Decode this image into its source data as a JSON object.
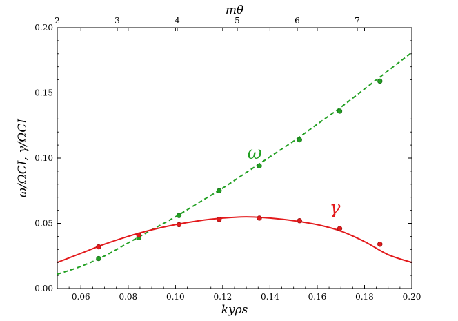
{
  "chart_data": {
    "type": "line",
    "xlabel": "kyρs",
    "ylabel": "ω/ΩCI, γ/ΩCI",
    "top_xlabel": "mθ",
    "xlim": [
      0.05,
      0.2
    ],
    "ylim": [
      0.0,
      0.2
    ],
    "x_ticks": [
      0.06,
      0.08,
      0.1,
      0.12,
      0.14,
      0.16,
      0.18,
      0.2
    ],
    "x_tick_labels": [
      "0.06",
      "0.08",
      "0.10",
      "0.12",
      "0.14",
      "0.16",
      "0.18",
      "0.20"
    ],
    "y_ticks": [
      0.0,
      0.05,
      0.1,
      0.15,
      0.2
    ],
    "y_tick_labels": [
      "0.00",
      "0.05",
      "0.10",
      "0.15",
      "0.20"
    ],
    "top_ticks": [
      {
        "x": 0.05,
        "label": "2"
      },
      {
        "x": 0.0667,
        "label": "3"
      },
      {
        "x": 0.1014,
        "label": "4"
      },
      {
        "x": 0.1183,
        "label": "5"
      },
      {
        "x": 0.1352,
        "label": "6"
      },
      {
        "x": 0.1521,
        "label": "7"
      }
    ],
    "grid": false,
    "series": [
      {
        "name": "ω",
        "color": "#22a022",
        "style": "dashed",
        "curve_x": [
          0.05,
          0.06,
          0.07,
          0.08,
          0.09,
          0.1,
          0.11,
          0.12,
          0.13,
          0.14,
          0.15,
          0.16,
          0.17,
          0.18,
          0.19,
          0.2
        ],
        "curve_y": [
          0.011,
          0.017,
          0.025,
          0.035,
          0.045,
          0.055,
          0.066,
          0.077,
          0.089,
          0.101,
          0.113,
          0.126,
          0.139,
          0.153,
          0.167,
          0.181
        ],
        "points_x": [
          0.0675,
          0.0845,
          0.1015,
          0.1185,
          0.1355,
          0.1525,
          0.1695,
          0.1865
        ],
        "points_y": [
          0.023,
          0.039,
          0.056,
          0.075,
          0.094,
          0.114,
          0.136,
          0.159
        ]
      },
      {
        "name": "γ",
        "color": "#e31a1c",
        "style": "solid",
        "curve_x": [
          0.05,
          0.06,
          0.07,
          0.08,
          0.09,
          0.1,
          0.11,
          0.12,
          0.13,
          0.14,
          0.15,
          0.16,
          0.17,
          0.18,
          0.19,
          0.2
        ],
        "curve_y": [
          0.02,
          0.027,
          0.034,
          0.04,
          0.045,
          0.049,
          0.052,
          0.054,
          0.055,
          0.054,
          0.052,
          0.049,
          0.044,
          0.036,
          0.026,
          0.02
        ],
        "points_x": [
          0.0675,
          0.0845,
          0.1015,
          0.1185,
          0.1355,
          0.1525,
          0.1695,
          0.1865
        ],
        "points_y": [
          0.032,
          0.041,
          0.049,
          0.053,
          0.054,
          0.052,
          0.046,
          0.034
        ]
      }
    ],
    "annotations": [
      {
        "text": "ω",
        "x": 0.1335,
        "y": 0.0995,
        "color": "#22a022"
      },
      {
        "text": "γ",
        "x": 0.1675,
        "y": 0.0575,
        "color": "#e31a1c"
      }
    ]
  }
}
